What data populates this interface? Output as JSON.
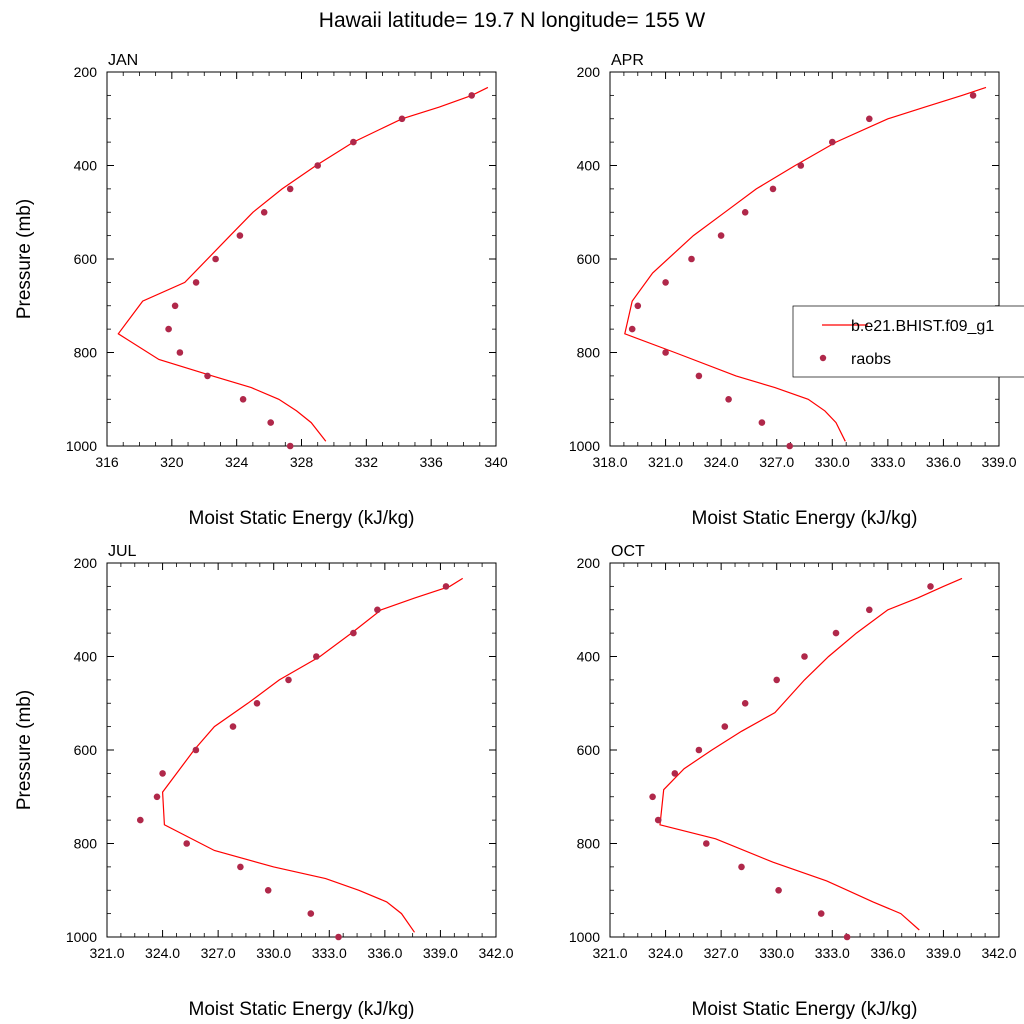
{
  "figure": {
    "title": "Hawaii  latitude= 19.7 N longitude= 155 W"
  },
  "colors": {
    "model_line": "#ff0000",
    "raobs_marker": "#b0284a",
    "axis": "#000000"
  },
  "legend": {
    "panel": "APR",
    "placement": "right",
    "entries": [
      {
        "label": "b.e21.BHIST.f09_g1",
        "style": "line",
        "color": "#ff0000"
      },
      {
        "label": "raobs",
        "style": "dot",
        "color": "#b0284a"
      }
    ]
  },
  "chart_data": [
    {
      "type": "line",
      "panel_label": "JAN",
      "xlabel": "Moist Static Energy (kJ/kg)",
      "ylabel": "Pressure (mb)",
      "xlim": [
        316,
        340
      ],
      "xticks": [
        "316",
        "320",
        "324",
        "328",
        "332",
        "336",
        "340"
      ],
      "xtick_values": [
        316,
        320,
        324,
        328,
        332,
        336,
        340
      ],
      "ylim": [
        200,
        1000
      ],
      "yticks": [
        "200",
        "400",
        "600",
        "800",
        "1000"
      ],
      "ytick_values": [
        200,
        400,
        600,
        800,
        1000
      ],
      "y_reversed": true,
      "series": [
        {
          "name": "b.e21.BHIST.f09_g1",
          "style": "line",
          "x": [
            339.5,
            338.5,
            336.5,
            334.2,
            331.2,
            328.9,
            326.8,
            325.0,
            323.6,
            320.8,
            318.2,
            316.7,
            319.2,
            322.5,
            324.9,
            326.6,
            327.7,
            328.6,
            329.5
          ],
          "y": [
            233,
            250,
            275,
            300,
            350,
            400,
            450,
            500,
            550,
            650,
            690,
            760,
            815,
            850,
            875,
            900,
            925,
            950,
            990
          ]
        },
        {
          "name": "raobs",
          "style": "markers",
          "x": [
            338.5,
            334.2,
            331.2,
            329.0,
            327.3,
            325.7,
            324.2,
            322.7,
            321.5,
            320.2,
            319.8,
            320.5,
            322.2,
            324.4,
            326.1,
            327.3
          ],
          "y": [
            250,
            300,
            350,
            400,
            450,
            500,
            550,
            600,
            650,
            700,
            750,
            800,
            850,
            900,
            950,
            1000
          ]
        }
      ]
    },
    {
      "type": "line",
      "panel_label": "APR",
      "xlabel": "Moist Static Energy (kJ/kg)",
      "ylabel": "",
      "xlim": [
        318,
        339
      ],
      "xticks": [
        "318.0",
        "321.0",
        "324.0",
        "327.0",
        "330.0",
        "333.0",
        "336.0",
        "339.0"
      ],
      "xtick_values": [
        318,
        321,
        324,
        327,
        330,
        333,
        336,
        339
      ],
      "ylim": [
        200,
        1000
      ],
      "yticks": [
        "200",
        "400",
        "600",
        "800",
        "1000"
      ],
      "ytick_values": [
        200,
        400,
        600,
        800,
        1000
      ],
      "y_reversed": true,
      "series": [
        {
          "name": "b.e21.BHIST.f09_g1",
          "style": "line",
          "x": [
            338.3,
            337.0,
            335.0,
            333.0,
            330.2,
            328.0,
            325.9,
            324.2,
            322.5,
            320.3,
            319.2,
            318.8,
            321.5,
            324.8,
            326.9,
            328.7,
            329.6,
            330.2,
            330.7
          ],
          "y": [
            233,
            250,
            275,
            300,
            350,
            400,
            450,
            500,
            550,
            630,
            690,
            760,
            800,
            850,
            875,
            900,
            925,
            950,
            990
          ]
        },
        {
          "name": "raobs",
          "style": "markers",
          "x": [
            337.6,
            332.0,
            330.0,
            328.3,
            326.8,
            325.3,
            324.0,
            322.4,
            321.0,
            319.5,
            319.2,
            321.0,
            322.8,
            324.4,
            326.2,
            327.7
          ],
          "y": [
            250,
            300,
            350,
            400,
            450,
            500,
            550,
            600,
            650,
            700,
            750,
            800,
            850,
            900,
            950,
            1000
          ]
        }
      ]
    },
    {
      "type": "line",
      "panel_label": "JUL",
      "xlabel": "Moist Static Energy (kJ/kg)",
      "ylabel": "Pressure (mb)",
      "xlim": [
        321,
        342
      ],
      "xticks": [
        "321.0",
        "324.0",
        "327.0",
        "330.0",
        "333.0",
        "336.0",
        "339.0",
        "342.0"
      ],
      "xtick_values": [
        321,
        324,
        327,
        330,
        333,
        336,
        339,
        342
      ],
      "ylim": [
        200,
        1000
      ],
      "yticks": [
        "200",
        "400",
        "600",
        "800",
        "1000"
      ],
      "ytick_values": [
        200,
        400,
        600,
        800,
        1000
      ],
      "y_reversed": true,
      "series": [
        {
          "name": "b.e21.BHIST.f09_g1",
          "style": "line",
          "x": [
            340.2,
            339.5,
            337.6,
            335.8,
            334.2,
            332.5,
            330.3,
            328.6,
            326.8,
            325.7,
            324.0,
            324.1,
            326.8,
            330.0,
            332.8,
            334.6,
            336.1,
            336.9,
            337.6
          ],
          "y": [
            233,
            250,
            275,
            300,
            350,
            400,
            450,
            500,
            550,
            600,
            690,
            760,
            815,
            850,
            875,
            900,
            925,
            950,
            990
          ]
        },
        {
          "name": "raobs",
          "style": "markers",
          "x": [
            339.3,
            335.6,
            334.3,
            332.3,
            330.8,
            329.1,
            327.8,
            325.8,
            324.0,
            323.7,
            322.8,
            325.3,
            328.2,
            329.7,
            332.0,
            333.5
          ],
          "y": [
            250,
            300,
            350,
            400,
            450,
            500,
            550,
            600,
            650,
            700,
            750,
            800,
            850,
            900,
            950,
            1000
          ]
        }
      ]
    },
    {
      "type": "line",
      "panel_label": "OCT",
      "xlabel": "Moist Static Energy (kJ/kg)",
      "ylabel": "",
      "xlim": [
        321,
        342
      ],
      "xticks": [
        "321.0",
        "324.0",
        "327.0",
        "330.0",
        "333.0",
        "336.0",
        "339.0",
        "342.0"
      ],
      "xtick_values": [
        321,
        324,
        327,
        330,
        333,
        336,
        339,
        342
      ],
      "ylim": [
        200,
        1000
      ],
      "yticks": [
        "200",
        "400",
        "600",
        "800",
        "1000"
      ],
      "ytick_values": [
        200,
        400,
        600,
        800,
        1000
      ],
      "y_reversed": true,
      "series": [
        {
          "name": "b.e21.BHIST.f09_g1",
          "style": "line",
          "x": [
            340.0,
            339.0,
            337.6,
            336.0,
            334.3,
            332.8,
            331.5,
            329.9,
            328.1,
            326.5,
            325.0,
            323.9,
            323.7,
            326.7,
            329.8,
            332.7,
            335.2,
            336.7,
            337.7
          ],
          "y": [
            233,
            250,
            275,
            300,
            350,
            400,
            450,
            520,
            560,
            600,
            640,
            685,
            760,
            790,
            840,
            880,
            925,
            950,
            985
          ]
        },
        {
          "name": "raobs",
          "style": "markers",
          "x": [
            338.3,
            335.0,
            333.2,
            331.5,
            330.0,
            328.3,
            327.2,
            325.8,
            324.5,
            323.3,
            323.6,
            326.2,
            328.1,
            330.1,
            332.4,
            333.8
          ],
          "y": [
            250,
            300,
            350,
            400,
            450,
            500,
            550,
            600,
            650,
            700,
            750,
            800,
            850,
            900,
            950,
            1000
          ]
        }
      ]
    }
  ]
}
